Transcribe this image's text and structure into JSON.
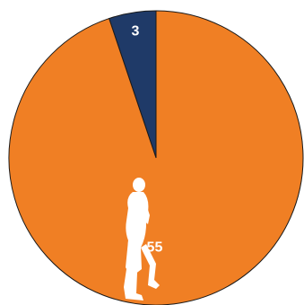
{
  "chart_data": {
    "type": "pie",
    "slices": [
      {
        "label": "3",
        "value": 3,
        "color": "#1f3a68"
      },
      {
        "label": "55",
        "value": 55,
        "color": "#f07f24"
      }
    ],
    "start": "12 o'clock",
    "direction": "counter-clockwise",
    "legend": "none",
    "icon": "woman-walking-silhouette-icon"
  }
}
